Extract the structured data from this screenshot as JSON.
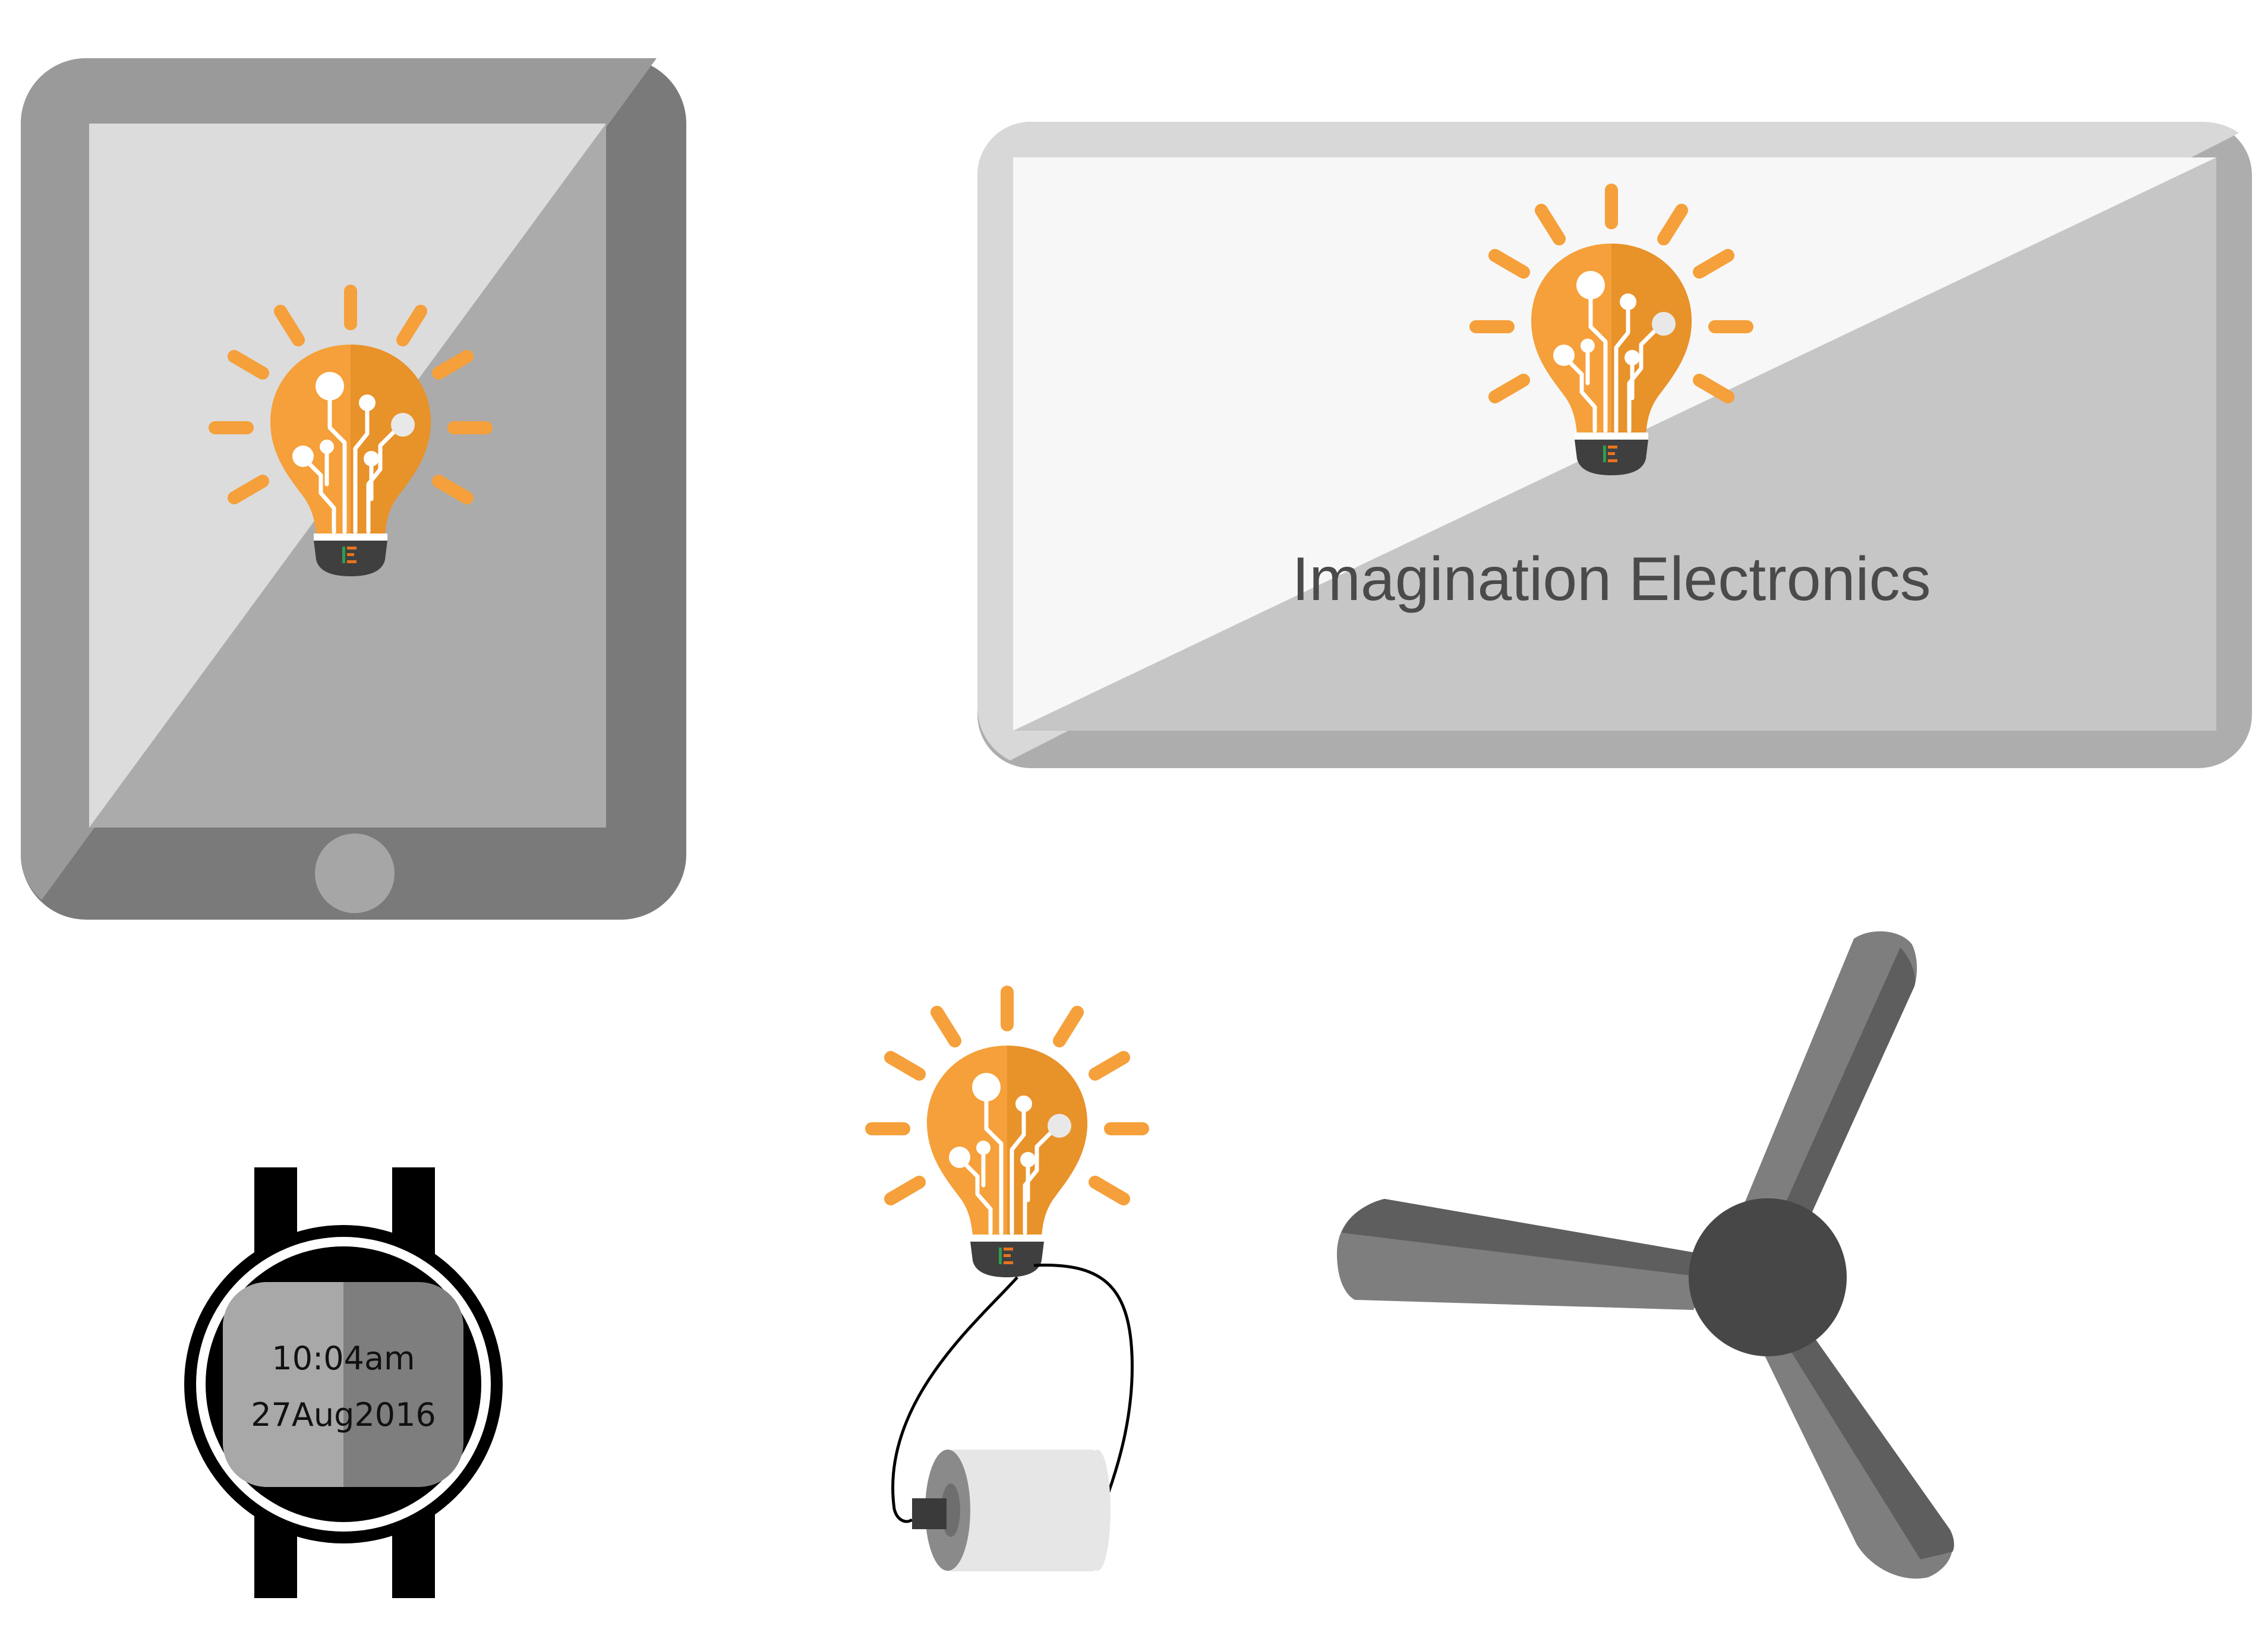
{
  "tv_screen": {
    "brand_name": "Imagination Electronics"
  },
  "watch": {
    "time": "10:04am",
    "date": "27Aug2016"
  },
  "colors": {
    "bulb_orange": "#F5A03A",
    "bulb_orange_dark": "#E58F28",
    "bulb_base": "#3F3F3F",
    "logo_green": "#2E9E4F",
    "logo_orange": "#E8731E",
    "device_dark_gray": "#7A7A7A",
    "device_light_gray": "#D9D9D9",
    "fan_hub": "#474747",
    "fan_blade": "#7E7E7E",
    "text_dark": "#4A4A4A"
  },
  "icons": {
    "bulb": "lightbulb-circuit-icon",
    "tablet": "tablet-icon",
    "tv": "tv-icon",
    "watch": "smartwatch-icon",
    "paper_roll": "toilet-paper-roll-icon",
    "fan": "ceiling-fan-icon"
  }
}
